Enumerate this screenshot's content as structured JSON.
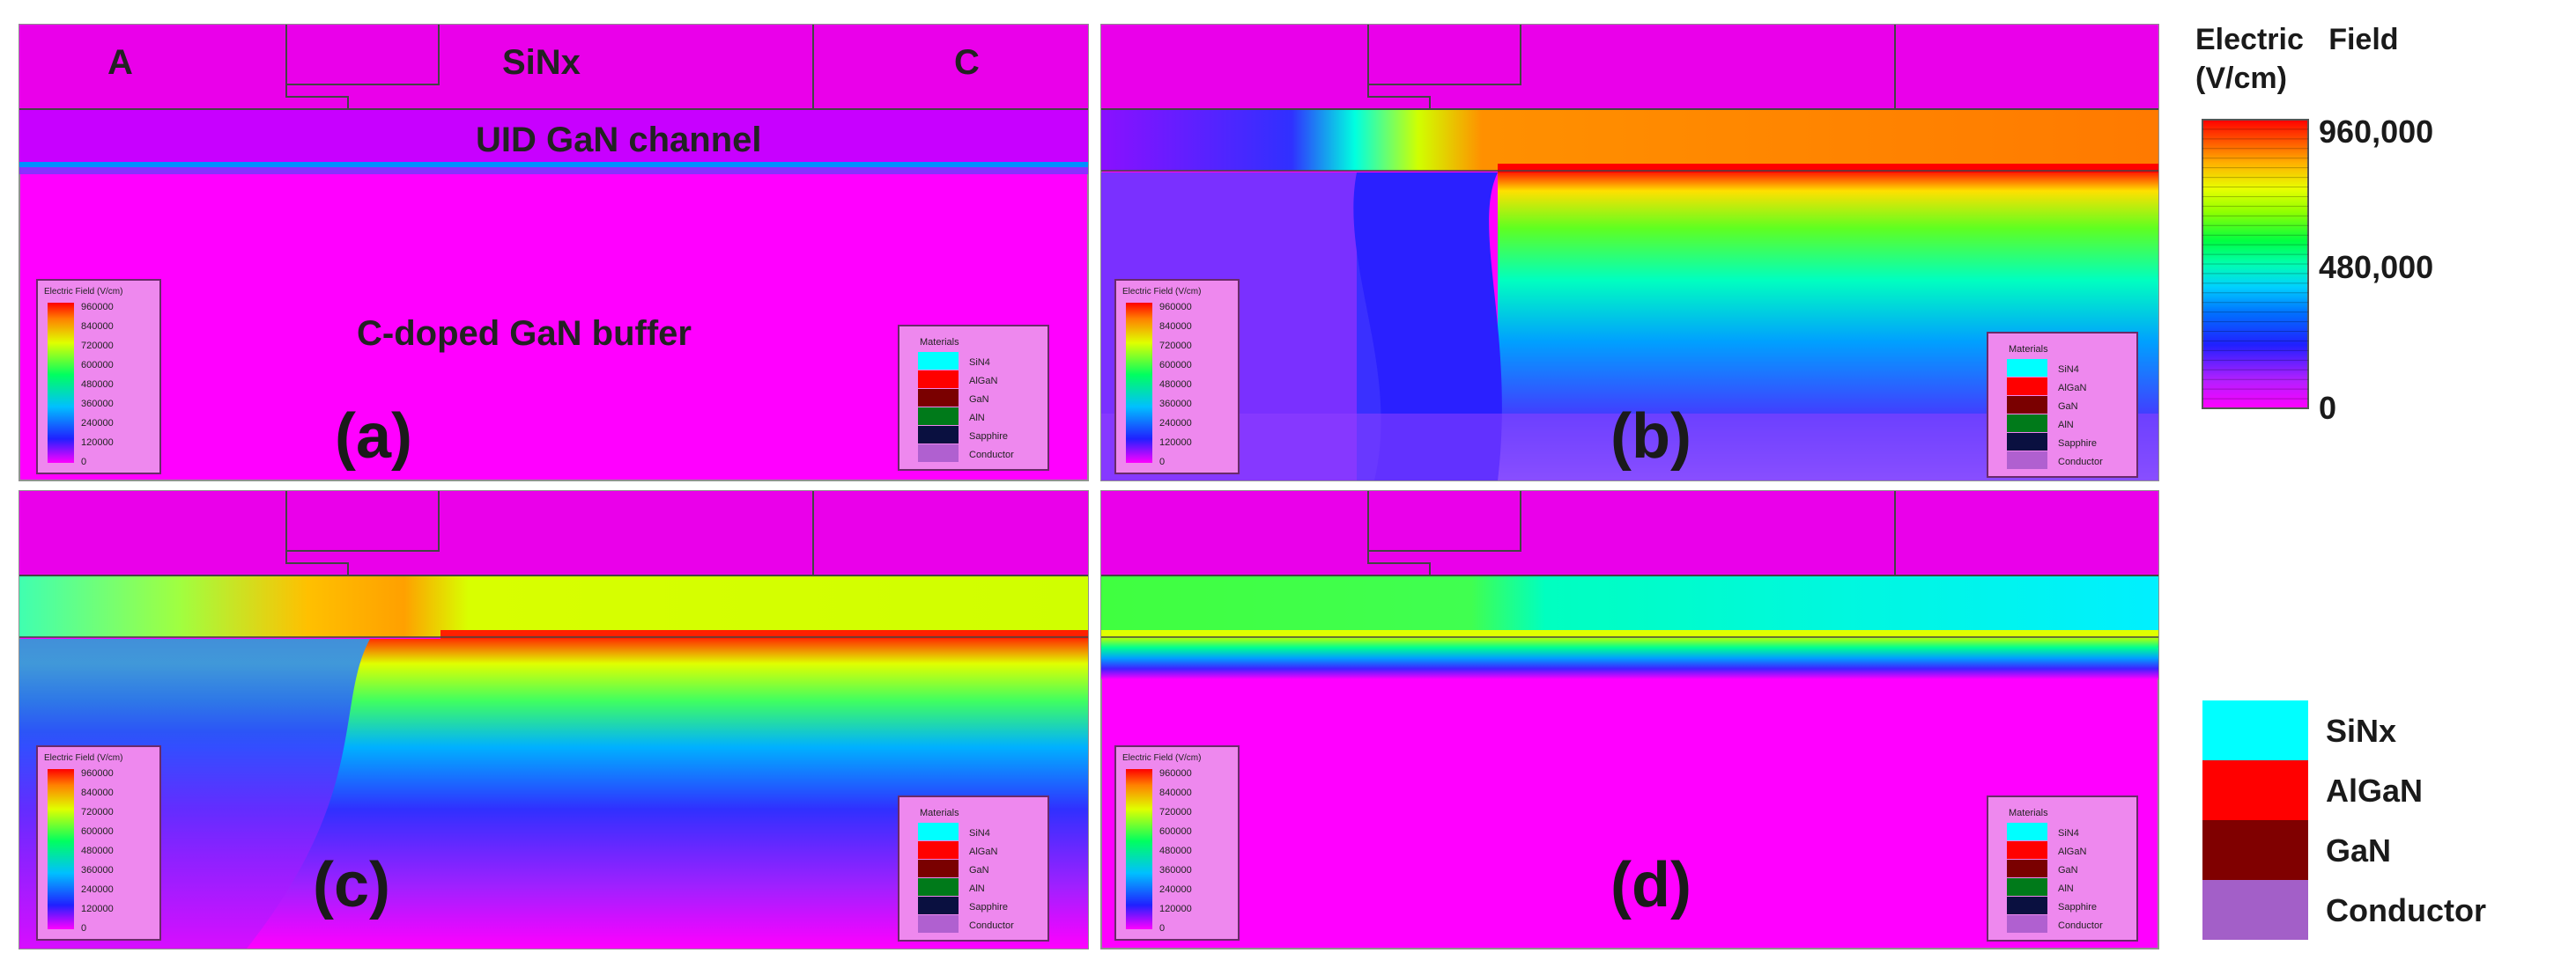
{
  "panels": [
    {
      "id": "a",
      "label": "(a)",
      "annotations": {
        "left_contact": "A",
        "passivation": "SiNx",
        "right_contact": "C",
        "channel": "UID GaN channel",
        "buffer": "C-doped GaN buffer"
      }
    },
    {
      "id": "b",
      "label": "(b)"
    },
    {
      "id": "c",
      "label": "(c)"
    },
    {
      "id": "d",
      "label": "(d)"
    }
  ],
  "inset_field_legend": {
    "title": "Electric Field (V/cm)",
    "ticks": [
      "960000",
      "840000",
      "720000",
      "600000",
      "480000",
      "360000",
      "240000",
      "120000",
      "0"
    ]
  },
  "inset_materials_legend": {
    "title": "Materials",
    "items": [
      {
        "name": "SiN4",
        "color": "#00ffff"
      },
      {
        "name": "AlGaN",
        "color": "#ff0000"
      },
      {
        "name": "GaN",
        "color": "#7a0000"
      },
      {
        "name": "AlN",
        "color": "#007a1a"
      },
      {
        "name": "Sapphire",
        "color": "#0a1040"
      },
      {
        "name": "Conductor",
        "color": "#b060d0"
      }
    ]
  },
  "field_colorbar": {
    "title_line1": "Electric   Field",
    "title_line2": "(V/cm)",
    "ticks": [
      "960,000",
      "480,000",
      "0"
    ],
    "colors": [
      "#ff00ff",
      "#a020ff",
      "#2020ff",
      "#0070ff",
      "#00d0ff",
      "#00ffb0",
      "#00ff40",
      "#80ff00",
      "#e0ff00",
      "#ffb000",
      "#ff5000",
      "#ff0000"
    ]
  },
  "materials_key": {
    "items": [
      {
        "name": "SiNx",
        "color": "#00ffff"
      },
      {
        "name": "AlGaN",
        "color": "#ff0000"
      },
      {
        "name": "GaN",
        "color": "#800000"
      },
      {
        "name": "Conductor",
        "color": "#a35fc8"
      }
    ]
  }
}
